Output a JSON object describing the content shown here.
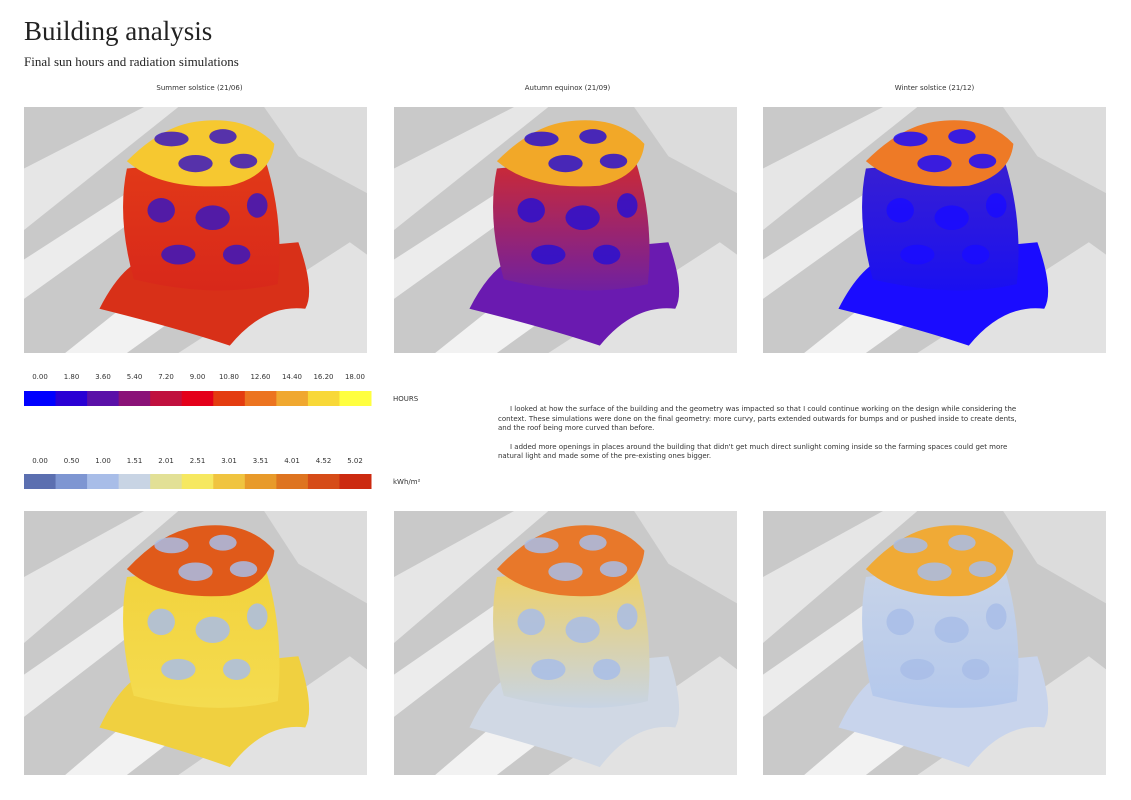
{
  "header": {
    "title": "Building analysis",
    "subtitle": "Final sun hours and radiation simulations"
  },
  "columns": [
    "Summer solstice (21/06)",
    "Autumn equinox (21/09)",
    "Winter solstice (21/12)"
  ],
  "legends": [
    {
      "labels": [
        "0.00",
        "1.80",
        "3.60",
        "5.40",
        "7.20",
        "9.00",
        "10.80",
        "12.60",
        "14.40",
        "16.20",
        "18.00"
      ],
      "colors": [
        "#0000ff",
        "#2a00d4",
        "#5a10a8",
        "#8a1278",
        "#c0103e",
        "#e4001a",
        "#e43c10",
        "#ec7420",
        "#f0a830",
        "#f8d838",
        "#ffff40"
      ],
      "unit": "HOURS"
    },
    {
      "labels": [
        "0.00",
        "0.50",
        "1.00",
        "1.51",
        "2.01",
        "2.51",
        "3.01",
        "3.51",
        "4.01",
        "4.52",
        "5.02"
      ],
      "colors": [
        "#5b6fb0",
        "#7e96d2",
        "#a8bde8",
        "#c8d4e4",
        "#e2e096",
        "#f6e860",
        "#f0c440",
        "#e89a2a",
        "#de7420",
        "#d64c18",
        "#cc2a10"
      ],
      "unit": "kWh/m²"
    }
  ],
  "paragraphs": [
    "I looked at how the surface of the building and the geometry was impacted so that I could continue working on the design while considering the context. These simulations were done on the final geometry: more curvy, parts extended outwards for bumps and or pushed inside to create dents, and the roof being more curved than before.",
    "I added more openings in places around the building that didn't get much direct sunlight coming inside so the farming spaces could get more natural light and made some of the pre-existing ones bigger."
  ]
}
